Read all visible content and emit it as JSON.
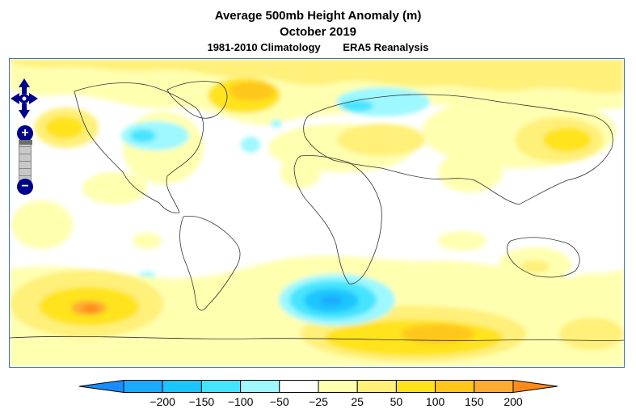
{
  "title": "Average 500mb Height Anomaly (m)",
  "date": "October 2019",
  "climatology": "1981-2010 Climatology",
  "dataset": "ERA5 Reanalysis",
  "controls": {
    "pan_icon": "pan-arrows-icon",
    "zoom_in_label": "+",
    "zoom_out_label": "−",
    "zoom_level_fraction": 0.0
  },
  "legend": {
    "colors": [
      "#1a8cff",
      "#1aaaff",
      "#1ac6ff",
      "#44e4ff",
      "#9ef8ff",
      "#ffffff",
      "#ffffb0",
      "#fff07a",
      "#ffe31a",
      "#ffc71a",
      "#ffab30",
      "#ff8a1a"
    ],
    "ticks": [
      "−200",
      "−150",
      "−100",
      "−50",
      "−25",
      "25",
      "50",
      "100",
      "150",
      "200"
    ]
  },
  "colors": {
    "frame": "#3a6fb3",
    "coast": "#333333",
    "zoom_control": "#00008b"
  }
}
